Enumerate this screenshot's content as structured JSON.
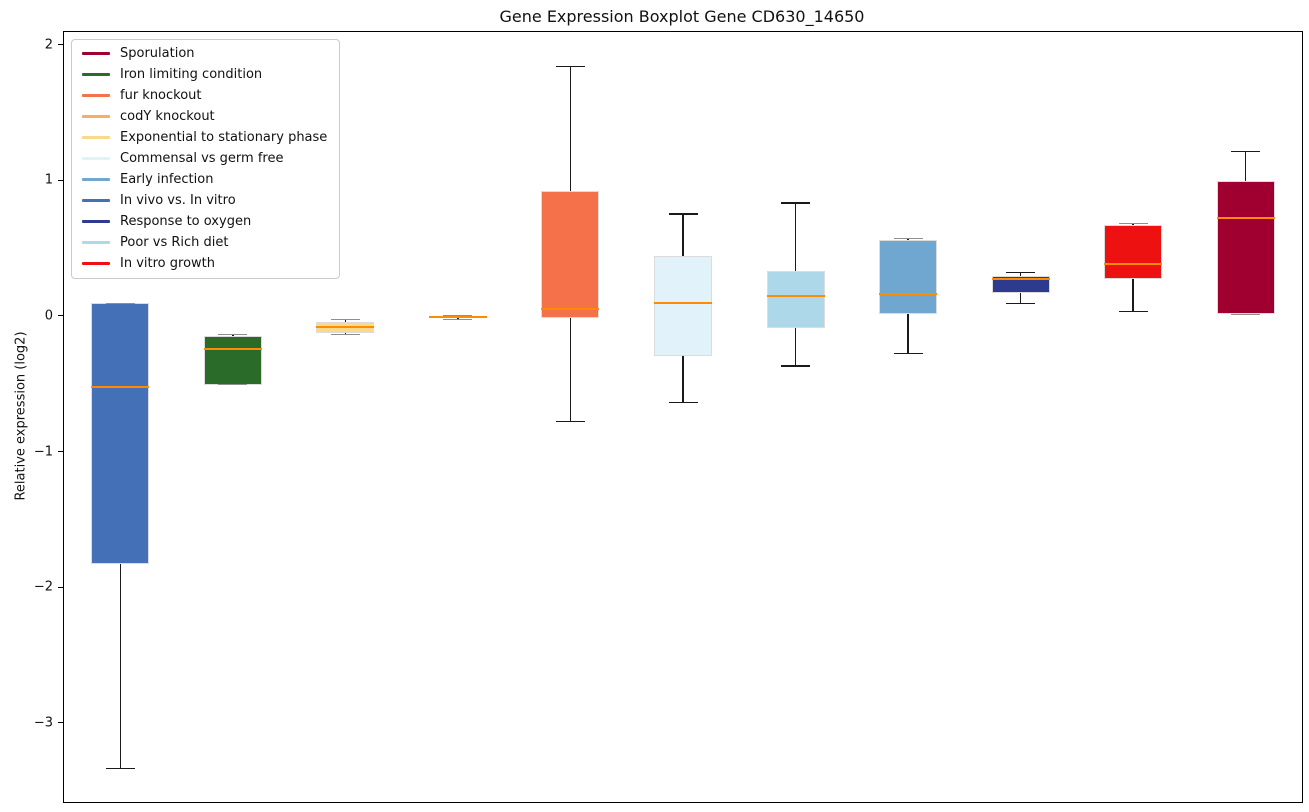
{
  "chart_data": {
    "type": "boxplot",
    "title": "Gene Expression Boxplot Gene CD630_14650",
    "ylabel": "Relative expression (log2)",
    "xlabel": "",
    "ylim": [
      -3.579,
      2.103
    ],
    "grid": false,
    "legend_position": "upper-left",
    "median_color": "#ff8c00",
    "yticks": [
      {
        "value": 2,
        "label": "2"
      },
      {
        "value": 1,
        "label": "1"
      },
      {
        "value": 0,
        "label": "0"
      },
      {
        "value": -1,
        "label": "−1"
      },
      {
        "value": -2,
        "label": "−2"
      },
      {
        "value": -3,
        "label": "−3"
      }
    ],
    "series": [
      {
        "name": "In vivo vs. In vitro",
        "color": "#4470b8",
        "min": -3.33,
        "q1": -1.82,
        "median": -0.52,
        "q3": 0.1,
        "max": 0.1
      },
      {
        "name": "Iron limiting condition",
        "color": "#2a6b2a",
        "min": -0.5,
        "q1": -0.5,
        "median": -0.235,
        "q3": -0.14,
        "max": -0.13
      },
      {
        "name": "Exponential to stationary phase",
        "color": "#f9d98a",
        "min": -0.13,
        "q1": -0.115,
        "median": -0.075,
        "q3": -0.035,
        "max": -0.02
      },
      {
        "name": "codY knockout",
        "color": "#fbad5c",
        "min": -0.02,
        "q1": -0.01,
        "median": 0.0,
        "q3": 0.005,
        "max": 0.01
      },
      {
        "name": "fur knockout",
        "color": "#f4714a",
        "min": -0.77,
        "q1": -0.01,
        "median": 0.06,
        "q3": 0.93,
        "max": 1.85
      },
      {
        "name": "Commensal vs germ free",
        "color": "#e1f2fa",
        "min": -0.63,
        "q1": -0.29,
        "median": 0.1,
        "q3": 0.45,
        "max": 0.76
      },
      {
        "name": "Poor vs Rich diet",
        "color": "#acd8e9",
        "min": -0.36,
        "q1": -0.08,
        "median": 0.155,
        "q3": 0.34,
        "max": 0.84
      },
      {
        "name": "Early infection",
        "color": "#70a7d0",
        "min": -0.27,
        "q1": 0.02,
        "median": 0.17,
        "q3": 0.57,
        "max": 0.58
      },
      {
        "name": "Response to oxygen",
        "color": "#2d3a8e",
        "min": 0.1,
        "q1": 0.18,
        "median": 0.28,
        "q3": 0.3,
        "max": 0.33
      },
      {
        "name": "In vitro growth",
        "color": "#ee1111",
        "min": 0.04,
        "q1": 0.28,
        "median": 0.39,
        "q3": 0.68,
        "max": 0.69
      },
      {
        "name": "Sporulation",
        "color": "#a00030",
        "min": 0.02,
        "q1": 0.02,
        "median": 0.73,
        "q3": 1.0,
        "max": 1.22
      }
    ],
    "legend": [
      {
        "label": "Sporulation",
        "color": "#a00030"
      },
      {
        "label": "Iron limiting condition",
        "color": "#2a6b2a"
      },
      {
        "label": "fur knockout",
        "color": "#f4714a"
      },
      {
        "label": "codY knockout",
        "color": "#fbad5c"
      },
      {
        "label": "Exponential to stationary phase",
        "color": "#f9d98a"
      },
      {
        "label": "Commensal vs germ free",
        "color": "#e1f2fa"
      },
      {
        "label": "Early infection",
        "color": "#70a7d0"
      },
      {
        "label": "In vivo vs. In vitro",
        "color": "#4470b8"
      },
      {
        "label": "Response to oxygen",
        "color": "#2d3a8e"
      },
      {
        "label": "Poor vs Rich diet",
        "color": "#acd8e9"
      },
      {
        "label": "In vitro growth",
        "color": "#ee1111"
      }
    ]
  }
}
